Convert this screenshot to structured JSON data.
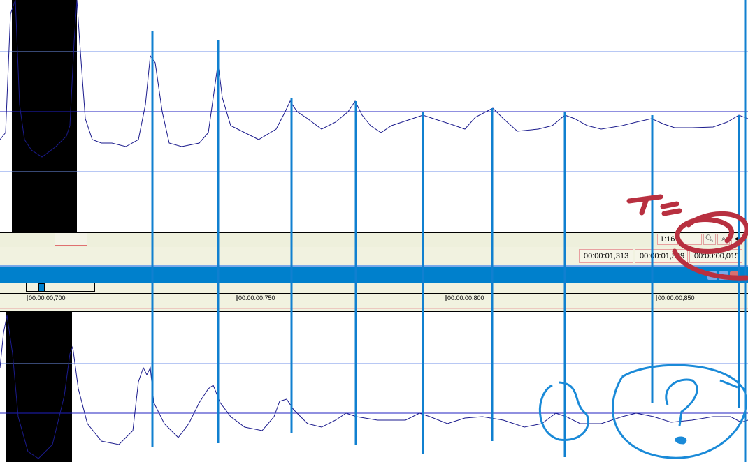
{
  "toolbar": {
    "zoom_value": "1:16",
    "time_fields": [
      "00:00:01,313",
      "00:00:01,329",
      "00:00:00,015"
    ],
    "zoom_in_icon": "magnifier-icon",
    "zoom_out_icon": "magnifier-small-icon",
    "scroll_left_icon": "arrow-left-icon"
  },
  "ruler": {
    "labels": [
      "00:00:00,700",
      "00:00:00,750",
      "00:00:00,800",
      "00:00:00,850"
    ]
  },
  "annotations": {
    "red_text": "T=",
    "blue_text": "?"
  },
  "colors": {
    "waveform": "#1a1a8c",
    "markers": "#1080d0",
    "selection": "#000000",
    "annotation_red": "#b83040",
    "annotation_blue": "#1a8ad8"
  }
}
